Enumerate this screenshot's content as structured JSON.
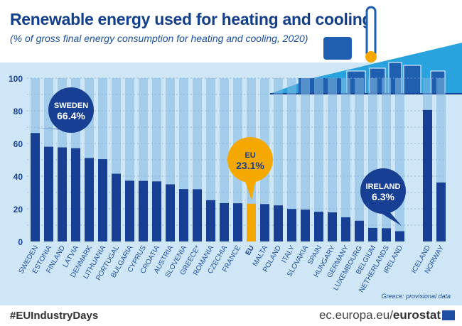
{
  "header": {
    "title": "Renewable energy used for heating and cooling",
    "subtitle": "(% of gross final energy consumption for heating and cooling, 2020)"
  },
  "footer": {
    "hashtag": "#EUIndustryDays",
    "site_prefix": "ec.europa.eu/",
    "site_brand": "eurostat",
    "note": "Greece: provisional data"
  },
  "chart_data": {
    "type": "bar",
    "ylim": [
      0,
      100
    ],
    "yticks": [
      0,
      20,
      40,
      60,
      80,
      100
    ],
    "grid": true,
    "categories": [
      "SWEDEN",
      "ESTONIA",
      "FINLAND",
      "LATVIA",
      "DENMARK",
      "LITHUANIA",
      "PORTUGAL",
      "BULGARIA",
      "CYPRUS",
      "CROATIA",
      "AUSTRIA",
      "SLOVENIA",
      "GREECE*",
      "ROMANIA",
      "CZECHIA",
      "FRANCE",
      "EU",
      "MALTA",
      "POLAND",
      "ITALY",
      "SLOVAKIA",
      "SPAIN",
      "HUNGARY",
      "GERMANY",
      "LUXEMBOURG",
      "BELGIUM",
      "NETHERLANDS",
      "IRELAND",
      "ICELAND",
      "NORWAY"
    ],
    "values": [
      66.4,
      58.0,
      57.6,
      57.1,
      51.1,
      50.4,
      41.5,
      37.2,
      37.1,
      36.8,
      35.0,
      32.1,
      32.0,
      25.3,
      23.5,
      23.4,
      23.1,
      22.9,
      22.1,
      19.9,
      19.5,
      18.2,
      17.8,
      14.8,
      12.7,
      8.3,
      8.1,
      6.3,
      80.5,
      36.1
    ],
    "colors": {
      "bar": "#173f93",
      "eu": "#f5a800",
      "track": "#7fb8e0"
    },
    "callouts": [
      {
        "label": "SWEDEN",
        "value": "66.4%"
      },
      {
        "label": "EU",
        "value": "23.1%"
      },
      {
        "label": "IRELAND",
        "value": "6.3%"
      }
    ]
  }
}
